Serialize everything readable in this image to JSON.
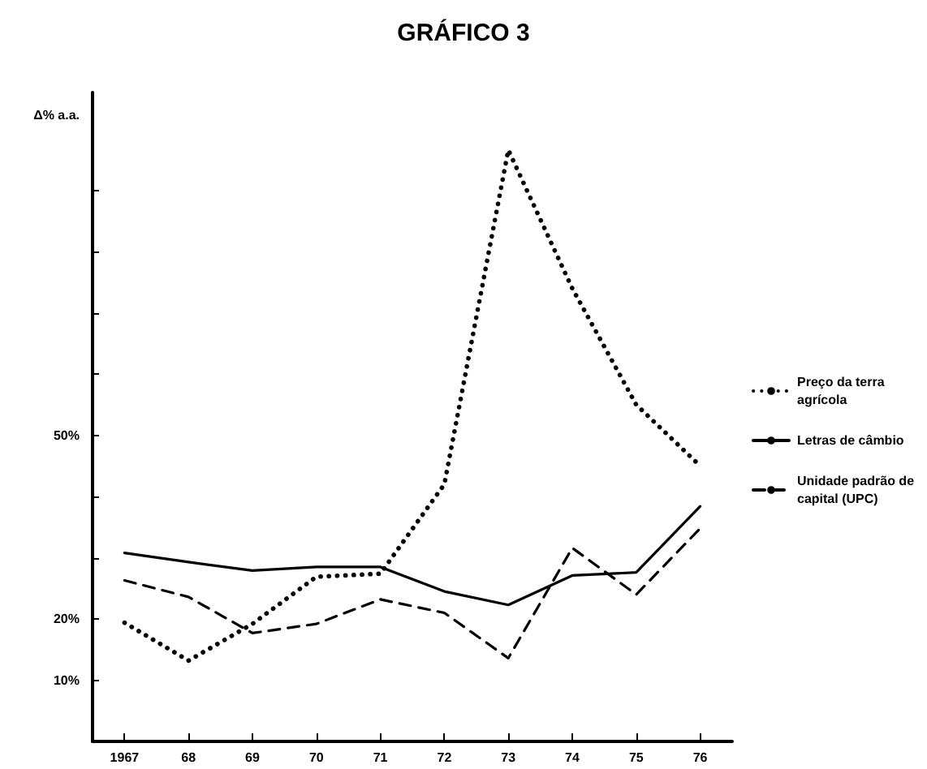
{
  "chart_data": {
    "type": "line",
    "title": "GRÁFICO 3",
    "ylabel": "Δ% a.a.",
    "categories": [
      "1967",
      "68",
      "69",
      "70",
      "71",
      "72",
      "73",
      "74",
      "75",
      "76"
    ],
    "series": [
      {
        "name": "Preço da terra agrícola",
        "color": "#000000",
        "line_style": "dotted",
        "values": [
          19.4,
          13.2,
          19.2,
          26.9,
          27.4,
          42,
          96.6,
          74,
          55,
          45
        ]
      },
      {
        "name": "Letras de câmbio",
        "color": "#000000",
        "line_style": "solid",
        "values": [
          30.8,
          29.3,
          27.9,
          28.5,
          28.5,
          24.5,
          22.3,
          27.1,
          27.6,
          38.4
        ]
      },
      {
        "name": "Unidade padrão de capital (UPC)",
        "color": "#000000",
        "line_style": "dashed",
        "values": [
          26.3,
          23.6,
          17.7,
          19.2,
          23.2,
          21,
          13.6,
          31.6,
          24,
          34.8
        ]
      }
    ],
    "ylim": [
      0,
      106
    ],
    "yticks": [
      {
        "value": 0,
        "label": null
      },
      {
        "value": 10,
        "label": "10%"
      },
      {
        "value": 20,
        "label": "20%"
      },
      {
        "value": 30,
        "label": null
      },
      {
        "value": 40,
        "label": null
      },
      {
        "value": 50,
        "label": "50%"
      },
      {
        "value": 60,
        "label": null
      },
      {
        "value": 70,
        "label": null
      },
      {
        "value": 80,
        "label": null
      },
      {
        "value": 90,
        "label": null
      }
    ],
    "grid": false,
    "legend": "right",
    "marker": "none"
  }
}
